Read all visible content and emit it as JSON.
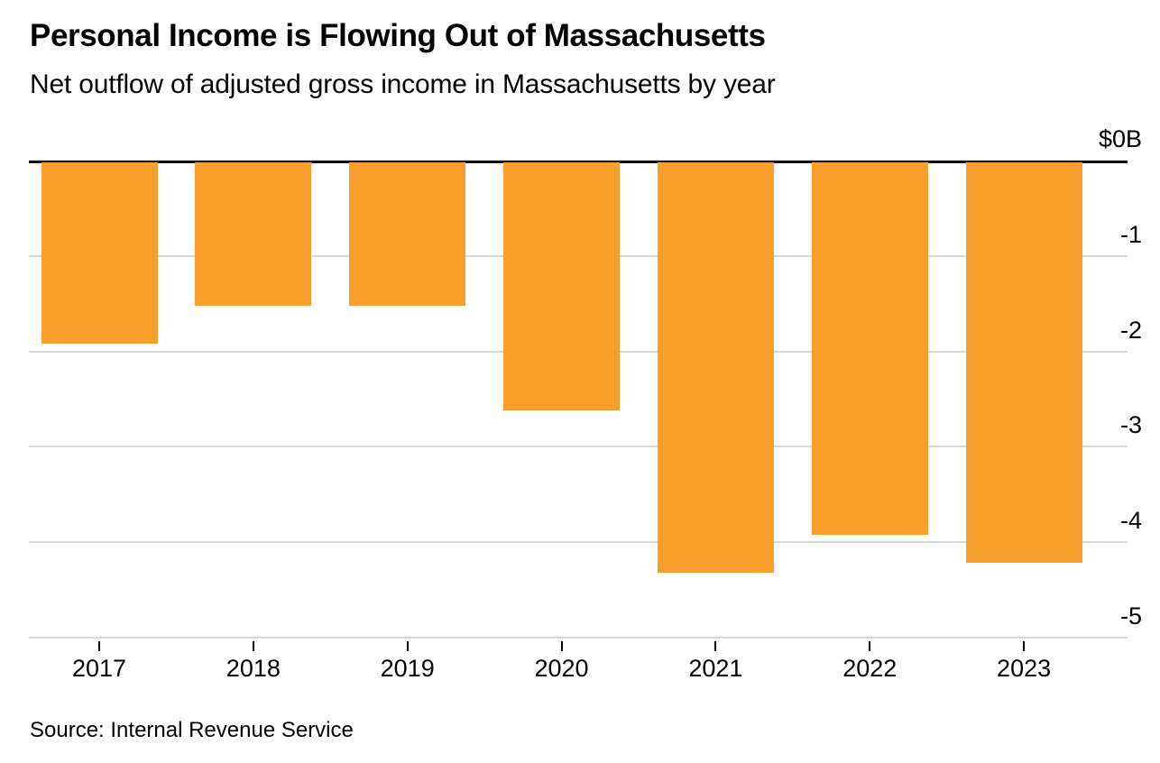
{
  "header": {
    "title": "Personal Income is Flowing Out of Massachusetts",
    "subtitle": "Net outflow of adjusted gross income in Massachusetts by year"
  },
  "footer": {
    "source": "Source: Internal Revenue Service"
  },
  "colors": {
    "bar": "#FA9E2B",
    "gridline": "#D9D9D9",
    "zero_line": "#000000",
    "text": "#000000"
  },
  "chart_data": {
    "type": "bar",
    "title": "Personal Income is Flowing Out of Massachusetts",
    "subtitle": "Net outflow of adjusted gross income in Massachusetts by year",
    "categories": [
      "2017",
      "2018",
      "2019",
      "2020",
      "2021",
      "2022",
      "2023"
    ],
    "values": [
      -1.9,
      -1.5,
      -1.5,
      -2.6,
      -4.3,
      -3.9,
      -4.2
    ],
    "series_name": "Net outflow of adjusted gross income ($B)",
    "unit": "$B",
    "xlabel": "",
    "ylabel": "",
    "ylim": [
      -5,
      0
    ],
    "y_axis": {
      "side": "right",
      "tick_values": [
        0,
        -1,
        -2,
        -3,
        -4,
        -5
      ],
      "tick_labels": [
        "$0B",
        "-1",
        "-2",
        "-3",
        "-4",
        "-5"
      ]
    },
    "grid": "horizontal",
    "legend": "none",
    "bar_color": "#FA9E2B",
    "source": "Source: Internal Revenue Service"
  }
}
